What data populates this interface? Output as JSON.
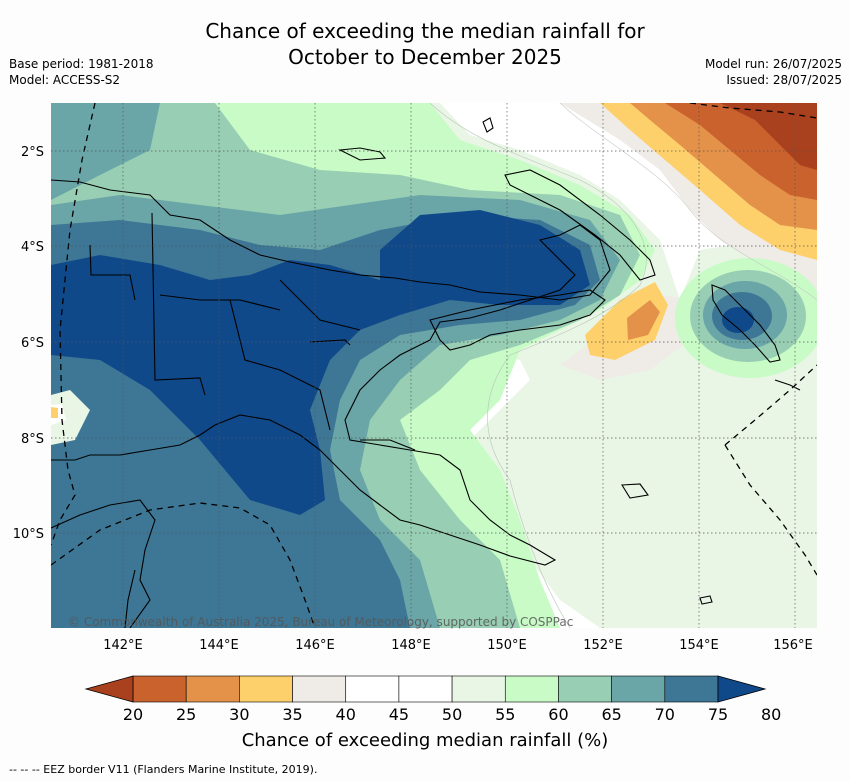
{
  "title_line1": "Chance of exceeding the median rainfall for",
  "title_line2": "October to December 2025",
  "base_period": "Base period: 1981-2018",
  "model": "Model: ACCESS-S2",
  "model_run": "Model run: 26/07/2025",
  "issued": "Issued: 28/07/2025",
  "copyright": "© Commonwealth of Australia 2025, Bureau of Meteorology, supported by COSPPac",
  "lat_labels": [
    "2°S",
    "4°S",
    "6°S",
    "8°S",
    "10°S"
  ],
  "lon_labels": [
    "142°E",
    "144°E",
    "146°E",
    "148°E",
    "150°E",
    "152°E",
    "154°E",
    "156°E"
  ],
  "colorbar": {
    "ticks": [
      "20",
      "25",
      "30",
      "35",
      "40",
      "45",
      "50",
      "55",
      "60",
      "65",
      "70",
      "75",
      "80"
    ],
    "colors": [
      "#a9411e",
      "#c9622d",
      "#e4914a",
      "#fdd06b",
      "#efebe6",
      "#ffffff",
      "#ffffff",
      "#e9f6e6",
      "#c8fbc6",
      "#98ceb3",
      "#6aa5a7",
      "#3e7795",
      "#10498a"
    ],
    "label": "Chance of exceeding median rainfall (%)"
  },
  "footnote": "-- -- -- EEZ border V11 (Flanders Marine Institute, 2019)."
}
